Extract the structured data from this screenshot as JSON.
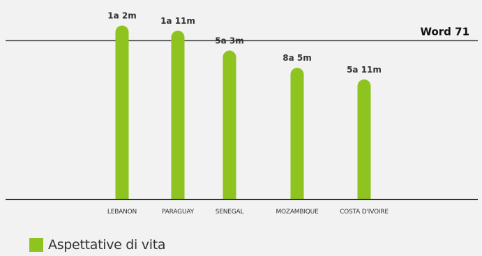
{
  "colors": {
    "bar": "#8fc31f",
    "background": "#f2f2f2",
    "axis": "#333333"
  },
  "reference_line": {
    "label": "Word 71",
    "value": 71
  },
  "legend": {
    "label": "Aspettative di vita"
  },
  "chart_data": {
    "type": "bar",
    "title": "",
    "xlabel": "",
    "ylabel": "",
    "ylim": [
      0,
      78
    ],
    "categories": [
      "LEBANON",
      "PARAGUAY",
      "SENEGAL",
      "MOZAMBIQUE",
      "COSTA D'IVOIRE"
    ],
    "series": [
      {
        "name": "Aspettative di vita",
        "values": [
          77.8,
          75.5,
          66.6,
          58.9,
          53.7
        ],
        "labels": [
          "1a 2m",
          "1a 11m",
          "5a 3m",
          "8a 5m",
          "5a 11m"
        ]
      }
    ],
    "reference_lines": [
      {
        "y": 71,
        "label": "Word 71"
      }
    ],
    "grid": false,
    "legend_position": "bottom-left"
  }
}
